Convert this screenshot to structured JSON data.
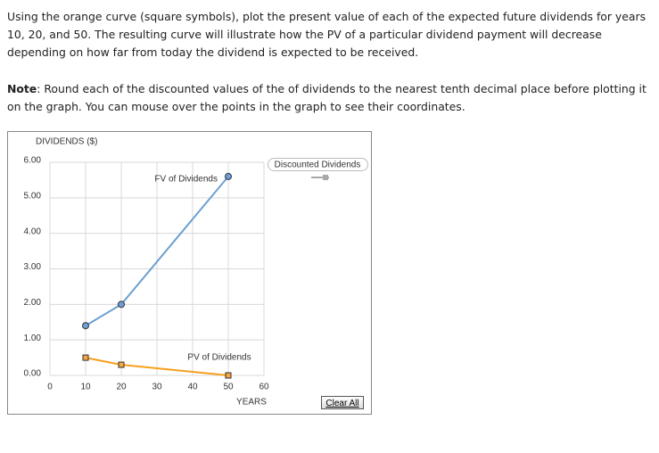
{
  "instructions": "Using the orange curve (square symbols), plot the present value of each of the expected future dividends for years 10, 20, and 50. The resulting curve will illustrate how the PV of a particular dividend payment will decrease depending on how far from today the dividend is expected to be received.",
  "note": {
    "label": "Note",
    "text": ": Round each of the discounted values of the of dividends to the nearest tenth decimal place before plotting it on the graph. You can mouse over the points in the graph to see their coordinates."
  },
  "button": "Clear All",
  "chart_data": {
    "type": "line",
    "ylabel": "DIVIDENDS ($)",
    "xlabel": "YEARS",
    "x": [
      10,
      20,
      50
    ],
    "series": [
      {
        "name": "FV of Dividends",
        "color": "#6a9fd0",
        "marker_color": "#6f9fd8",
        "marker": "circle",
        "values": [
          1.4,
          2.0,
          5.6
        ]
      },
      {
        "name": "Discounted Dividends",
        "color": "#f5a01e",
        "marker_color": "#f7a541",
        "marker": "square",
        "values": [
          0.5,
          0.3,
          0.0
        ]
      }
    ],
    "annotations": [
      {
        "text": "PV of Dividends",
        "x": 50,
        "y": 0.0
      }
    ],
    "legend_color": "#a8a8a8",
    "xlim": [
      0,
      60
    ],
    "xticks": [
      0,
      10,
      20,
      30,
      40,
      50,
      60
    ],
    "ylim": [
      0,
      6
    ],
    "yticks": [
      {
        "value": 0,
        "label": "0.00"
      },
      {
        "value": 1,
        "label": "1.00"
      },
      {
        "value": 2,
        "label": "2.00"
      },
      {
        "value": 3,
        "label": "3.00"
      },
      {
        "value": 4,
        "label": "4.00"
      },
      {
        "value": 5,
        "label": "5.00"
      },
      {
        "value": 6,
        "label": "6.00"
      }
    ],
    "grid": true
  }
}
